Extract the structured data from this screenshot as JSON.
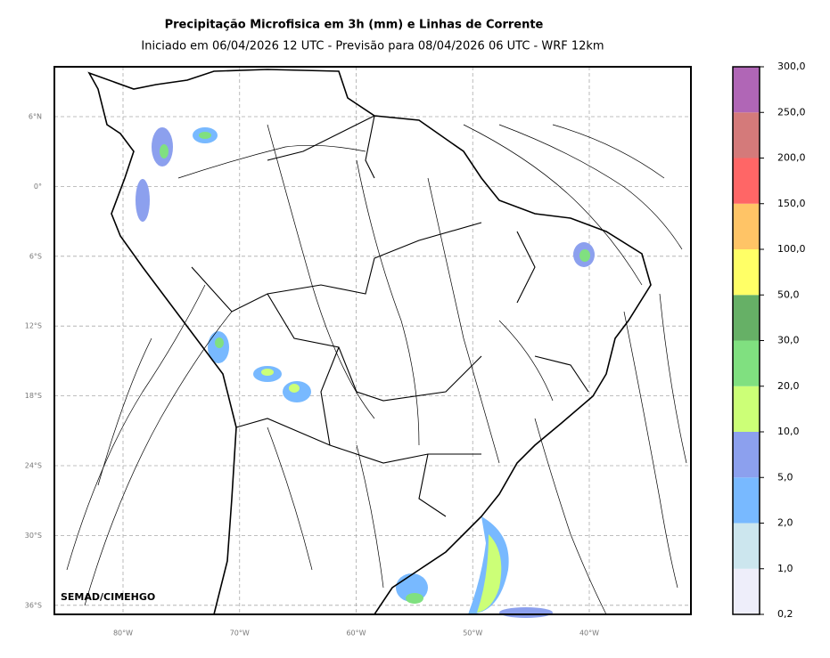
{
  "title": "Precipitação Microfisica em 3h (mm) e Linhas de Corrente",
  "subtitle": "Iniciado em 06/04/2026 12 UTC - Previsão para 08/04/2026 06 UTC - WRF 12km",
  "credit": "SEMAD/CIMEHGO",
  "map": {
    "lon_labels": [
      "80°W",
      "70°W",
      "60°W",
      "50°W",
      "40°W"
    ],
    "lat_labels": [
      "6°N",
      "0°",
      "6°S",
      "12°S",
      "18°S",
      "24°S",
      "30°S",
      "36°S"
    ]
  },
  "colorbar": {
    "levels": [
      "0,2",
      "1,0",
      "2,0",
      "5,0",
      "10,0",
      "20,0",
      "30,0",
      "50,0",
      "100,0",
      "150,0",
      "200,0",
      "250,0",
      "300,0"
    ],
    "colors": [
      "#eeeefa",
      "#cce6ee",
      "#78b9ff",
      "#8ca0ee",
      "#ccff77",
      "#80e080",
      "#66b066",
      "#ffff66",
      "#ffc466",
      "#ff6666",
      "#d47a7a",
      "#b066b6"
    ]
  }
}
